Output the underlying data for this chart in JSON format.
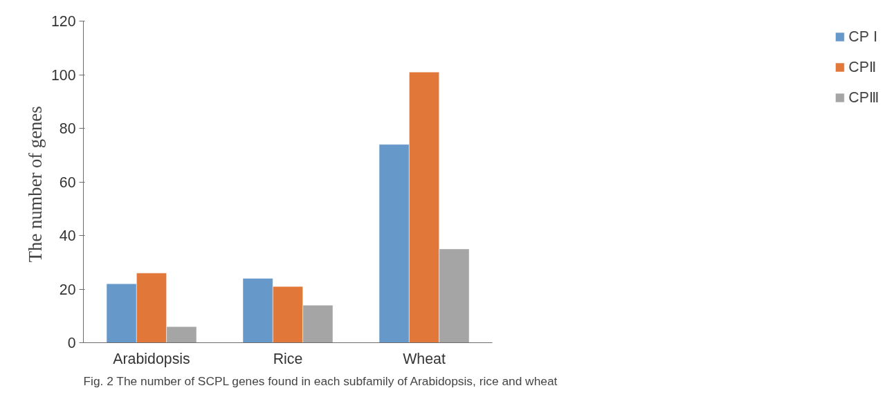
{
  "chart_data": {
    "type": "bar",
    "ylabel": "The number  of genes",
    "categories": [
      "Arabidopsis",
      "Rice",
      "Wheat"
    ],
    "series": [
      {
        "name": "CP Ⅰ",
        "color": "#6699c9",
        "values": [
          22,
          24,
          74
        ]
      },
      {
        "name": "CPⅡ",
        "color": "#e2773a",
        "values": [
          26,
          21,
          101
        ]
      },
      {
        "name": "CPⅢ",
        "color": "#a5a5a6",
        "values": [
          6,
          14,
          35
        ]
      }
    ],
    "ylim": [
      0,
      120
    ],
    "yticks": [
      0,
      20,
      40,
      60,
      80,
      100,
      120
    ],
    "grid": false,
    "legend": "right",
    "annotations": [
      "Fig. 2 The number of SCPL genes found in each subfamily of Arabidopsis, rice and wheat"
    ]
  }
}
